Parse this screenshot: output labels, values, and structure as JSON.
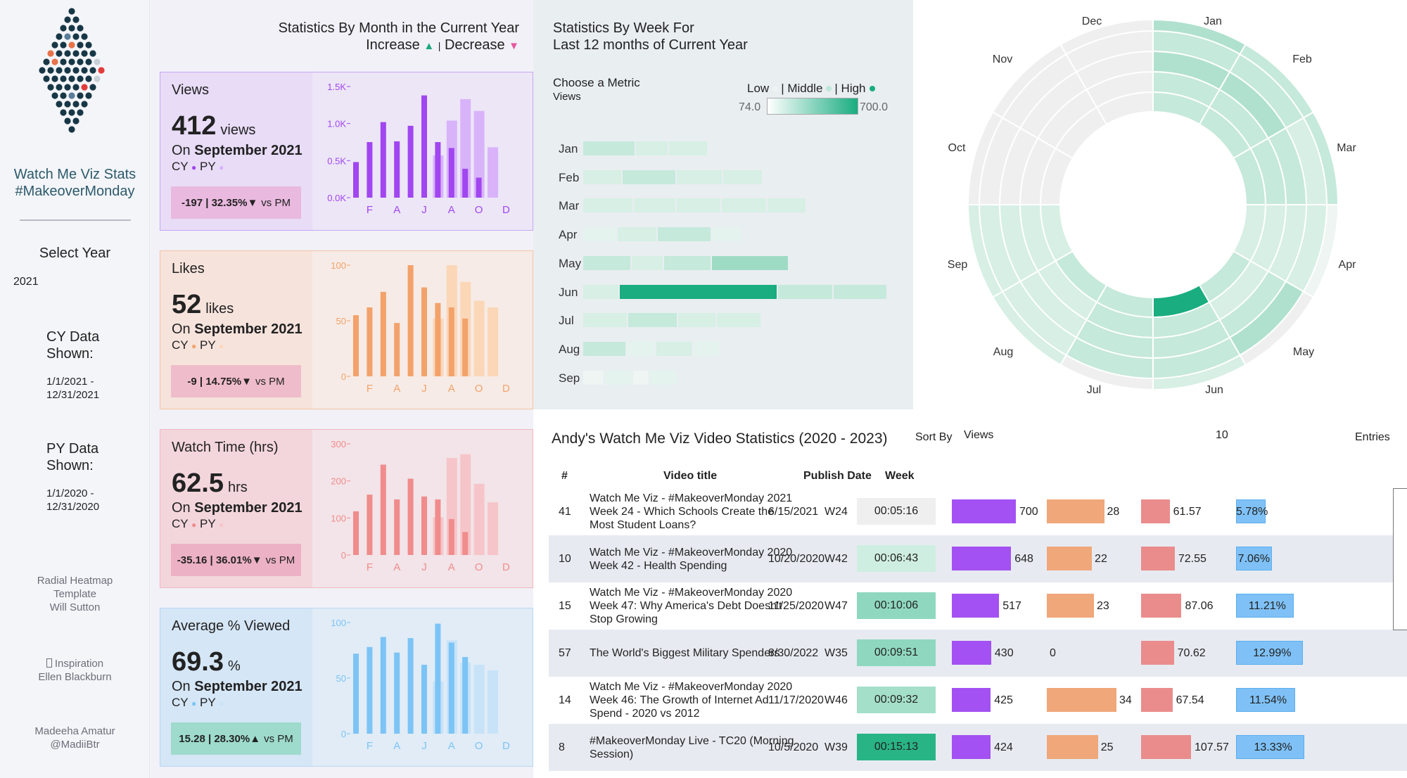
{
  "sidebar": {
    "title_line1": "Watch Me Viz Stats",
    "title_line2": "#MakeoverMonday",
    "select_year_label": "Select Year",
    "select_year_value": "2021",
    "cy_label_1": "CY Data",
    "cy_label_2": "Shown:",
    "cy_range_1": "1/1/2021 -",
    "cy_range_2": "12/31/2021",
    "py_label_1": "PY Data",
    "py_label_2": "Shown:",
    "py_range_1": "1/1/2020 -",
    "py_range_2": "12/31/2020",
    "credit1_1": "Radial Heatmap",
    "credit1_2": "Template",
    "credit1_3": "Will Sutton",
    "credit2_1": "Inspiration",
    "credit2_2": "Ellen Blackburn",
    "credit3_1": "Madeeha Amatur",
    "credit3_2": "@MadiiBtr",
    "logo_icon": "dot-diamond-logo"
  },
  "monthly": {
    "title": "Statistics By Month in the Current Year",
    "increase_label": "Increase",
    "separator": "|",
    "decrease_label": "Decrease",
    "increase_color": "#1aa87c",
    "decrease_color": "#e8559d",
    "cards": [
      {
        "name": "Views",
        "value": "412",
        "unit": "views",
        "on_prefix": "On",
        "period": "September 2021",
        "cy": "CY",
        "py": "PY",
        "change": "-197 | 32.35%▼",
        "vs": "vs PM",
        "cy_color": "#a146f0",
        "py_color": "#d9b3fa",
        "kpi_bg": "#e8dcf7",
        "chart_bg": "#ece6f6",
        "border": "#c9a6f2",
        "box_bg": "#e9b9df",
        "tick_color": "#a146f0",
        "y_ticks": [
          "1.5K",
          "1.0K",
          "0.5K",
          "0.0K"
        ],
        "ymax": 1500
      },
      {
        "name": "Likes",
        "value": "52",
        "unit": "likes",
        "on_prefix": "On",
        "period": "September 2021",
        "cy": "CY",
        "py": "PY",
        "change": "-9 | 14.75%▼",
        "vs": "vs PM",
        "cy_color": "#f2a26a",
        "py_color": "#fbd7b8",
        "kpi_bg": "#f6e3dc",
        "chart_bg": "#f6ebe6",
        "border": "#f4c4a3",
        "box_bg": "#efbccb",
        "tick_color": "#f2a26a",
        "y_ticks": [
          "100",
          "50",
          "0"
        ],
        "ymax": 100
      },
      {
        "name": "Watch Time (hrs)",
        "value": "62.5",
        "unit": "hrs",
        "on_prefix": "On",
        "period": "September 2021",
        "cy": "CY",
        "py": "PY",
        "change": "-35.16 | 36.01%▼",
        "vs": "vs PM",
        "cy_color": "#f08c8c",
        "py_color": "#f6c5c9",
        "kpi_bg": "#f3d6dc",
        "chart_bg": "#f2e4e8",
        "border": "#f0b8bf",
        "box_bg": "#ecb1c4",
        "tick_color": "#f08c8c",
        "y_ticks": [
          "300",
          "200",
          "100",
          "0"
        ],
        "ymax": 300
      },
      {
        "name": "Average % Viewed",
        "value": "69.3",
        "unit": "%",
        "on_prefix": "On",
        "period": "September 2021",
        "cy": "CY",
        "py": "PY",
        "change": "15.28 | 28.30%▲",
        "vs": "vs PM",
        "cy_color": "#7cc4f5",
        "py_color": "#c8e3f8",
        "kpi_bg": "#d5e6f6",
        "chart_bg": "#e1ecf6",
        "border": "#b9d6f2",
        "box_bg": "#9edbcc",
        "tick_color": "#7cc4f5",
        "y_ticks": [
          "100",
          "50",
          "0"
        ],
        "ymax": 100
      }
    ],
    "x_ticks": [
      "F",
      "A",
      "J",
      "A",
      "O",
      "D"
    ]
  },
  "weekly": {
    "title_line1": "Statistics By Week For",
    "title_line2": "Last 12 months of Current Year",
    "metric_label": "Choose a Metric",
    "metric_value": "Views",
    "legend_low": "Low",
    "legend_mid": "| Middle",
    "legend_high": "| High",
    "grad_low": "74.0",
    "grad_high": "700.0"
  },
  "radial": {
    "month_labels": [
      "Jan",
      "Feb",
      "Mar",
      "Apr",
      "May",
      "Jun",
      "Jul",
      "Aug",
      "Sep",
      "Oct",
      "Nov",
      "Dec"
    ]
  },
  "table": {
    "title": "Andy's Watch Me Viz Video Statistics (2020 - 2023)",
    "sort_by_label": "Sort By",
    "sort_by_value": "Views",
    "entries_count": "10",
    "entries_label": "Entries",
    "headers": {
      "num": "#",
      "title": "Video title",
      "date": "Publish Date",
      "week": "Week"
    },
    "rows": [
      {
        "num": "41",
        "title": [
          "Watch Me Viz - #MakeoverMonday 2021",
          "Week 24 - Which Schools Create the",
          "Most Student Loans?"
        ],
        "date": "6/15/2021",
        "week": "W24",
        "time": "00:05:16",
        "views": "700",
        "likes": "28",
        "watch": "61.57",
        "pct": "5.78%"
      },
      {
        "num": "10",
        "title": [
          "Watch Me Viz - #MakeoverMonday 2020",
          "Week 42 - Health Spending"
        ],
        "date": "10/20/2020",
        "week": "W42",
        "time": "00:06:43",
        "views": "648",
        "likes": "22",
        "watch": "72.55",
        "pct": "7.06%"
      },
      {
        "num": "15",
        "title": [
          "Watch Me Viz - #MakeoverMonday 2020",
          "Week 47: Why America's Debt Doesn't",
          "Stop Growing"
        ],
        "date": "11/25/2020",
        "week": "W47",
        "time": "00:10:06",
        "views": "517",
        "likes": "23",
        "watch": "87.06",
        "pct": "11.21%"
      },
      {
        "num": "57",
        "title": [
          "The World's Biggest Military Spenders"
        ],
        "date": "8/30/2022",
        "week": "W35",
        "time": "00:09:51",
        "views": "430",
        "likes": "0",
        "watch": "70.62",
        "pct": "12.99%"
      },
      {
        "num": "14",
        "title": [
          "Watch Me Viz - #MakeoverMonday 2020",
          "Week 46: The Growth of Internet Ad",
          "Spend - 2020 vs 2012"
        ],
        "date": "11/17/2020",
        "week": "W46",
        "time": "00:09:32",
        "views": "425",
        "likes": "34",
        "watch": "67.54",
        "pct": "11.54%"
      },
      {
        "num": "8",
        "title": [
          "#MakeoverMonday Live - TC20 (Morning",
          "Session)"
        ],
        "date": "10/5/2020",
        "week": "W39",
        "time": "00:15:13",
        "views": "424",
        "likes": "25",
        "watch": "107.57",
        "pct": "13.33%"
      }
    ]
  }
}
